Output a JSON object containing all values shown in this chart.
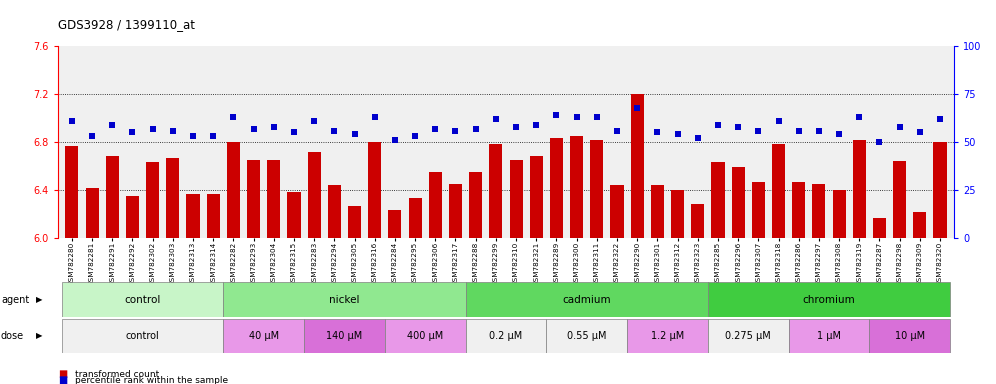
{
  "title": "GDS3928 / 1399110_at",
  "samples": [
    "GSM782280",
    "GSM782281",
    "GSM782291",
    "GSM782292",
    "GSM782302",
    "GSM782303",
    "GSM782313",
    "GSM782314",
    "GSM782282",
    "GSM782293",
    "GSM782304",
    "GSM782315",
    "GSM782283",
    "GSM782294",
    "GSM782305",
    "GSM782316",
    "GSM782284",
    "GSM782295",
    "GSM782306",
    "GSM782317",
    "GSM782288",
    "GSM782299",
    "GSM782310",
    "GSM782321",
    "GSM782289",
    "GSM782300",
    "GSM782311",
    "GSM782322",
    "GSM782290",
    "GSM782301",
    "GSM782312",
    "GSM782323",
    "GSM782285",
    "GSM782296",
    "GSM782307",
    "GSM782318",
    "GSM782286",
    "GSM782297",
    "GSM782308",
    "GSM782319",
    "GSM782287",
    "GSM782298",
    "GSM782309",
    "GSM782320"
  ],
  "bar_values": [
    6.77,
    6.42,
    6.68,
    6.35,
    6.63,
    6.67,
    6.37,
    6.37,
    6.8,
    6.65,
    6.65,
    6.38,
    6.72,
    6.44,
    6.27,
    6.8,
    6.23,
    6.33,
    6.55,
    6.45,
    6.55,
    6.78,
    6.65,
    6.68,
    6.83,
    6.85,
    6.82,
    6.44,
    7.2,
    6.44,
    6.4,
    6.28,
    6.63,
    6.59,
    6.47,
    6.78,
    6.47,
    6.45,
    6.4,
    6.82,
    6.17,
    6.64,
    6.22,
    6.8
  ],
  "percentile_values": [
    61,
    53,
    59,
    55,
    57,
    56,
    53,
    53,
    63,
    57,
    58,
    55,
    61,
    56,
    54,
    63,
    51,
    53,
    57,
    56,
    57,
    62,
    58,
    59,
    64,
    63,
    63,
    56,
    68,
    55,
    54,
    52,
    59,
    58,
    56,
    61,
    56,
    56,
    54,
    63,
    50,
    58,
    55,
    62
  ],
  "ylim_left": [
    6.0,
    7.6
  ],
  "ylim_right": [
    0,
    100
  ],
  "yticks_left": [
    6.0,
    6.4,
    6.8,
    7.2,
    7.6
  ],
  "yticks_right": [
    0,
    25,
    50,
    75,
    100
  ],
  "bar_color": "#cc0000",
  "dot_color": "#0000cc",
  "bar_bottom": 6.0,
  "agent_groups": [
    {
      "label": "control",
      "start": 0,
      "end": 8,
      "color": "#c8f5c8"
    },
    {
      "label": "nickel",
      "start": 8,
      "end": 20,
      "color": "#90e890"
    },
    {
      "label": "cadmium",
      "start": 20,
      "end": 32,
      "color": "#60d860"
    },
    {
      "label": "chromium",
      "start": 32,
      "end": 44,
      "color": "#40cc40"
    }
  ],
  "dose_groups": [
    {
      "label": "control",
      "start": 0,
      "end": 8,
      "color": "#f0f0f0"
    },
    {
      "label": "40 μM",
      "start": 8,
      "end": 12,
      "color": "#e898e8"
    },
    {
      "label": "140 μM",
      "start": 12,
      "end": 16,
      "color": "#d870d8"
    },
    {
      "label": "400 μM",
      "start": 16,
      "end": 20,
      "color": "#e898e8"
    },
    {
      "label": "0.2 μM",
      "start": 20,
      "end": 24,
      "color": "#f0f0f0"
    },
    {
      "label": "0.55 μM",
      "start": 24,
      "end": 28,
      "color": "#f0f0f0"
    },
    {
      "label": "1.2 μM",
      "start": 28,
      "end": 32,
      "color": "#e898e8"
    },
    {
      "label": "0.275 μM",
      "start": 32,
      "end": 36,
      "color": "#f0f0f0"
    },
    {
      "label": "1 μM",
      "start": 36,
      "end": 40,
      "color": "#e898e8"
    },
    {
      "label": "10 μM",
      "start": 40,
      "end": 44,
      "color": "#d870d8"
    }
  ],
  "hline_values": [
    6.4,
    6.8,
    7.2
  ],
  "bg_color": "#ffffff",
  "plot_bg": "#f0f0f0"
}
